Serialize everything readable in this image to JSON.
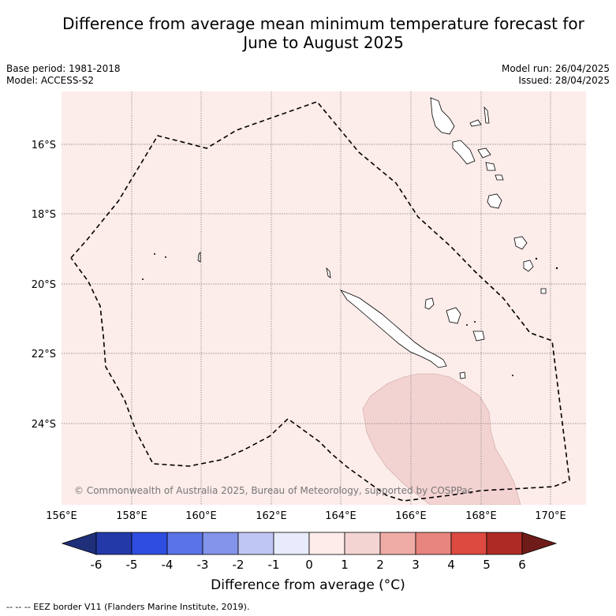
{
  "header": {
    "title_line1": "Difference from average mean minimum temperature forecast for",
    "title_line2": "June to August 2025",
    "base_period": "Base period: 1981-2018",
    "model": "Model: ACCESS-S2",
    "model_run": "Model run: 26/04/2025",
    "issued": "Issued: 28/04/2025"
  },
  "map": {
    "copyright": "© Commonwealth of Australia 2025, Bureau of Meteorology, supported by COSPPac",
    "lat_labels": [
      "16°S",
      "18°S",
      "20°S",
      "22°S",
      "24°S"
    ],
    "lon_labels": [
      "156°E",
      "158°E",
      "160°E",
      "162°E",
      "164°E",
      "166°E",
      "168°E",
      "170°E"
    ],
    "background_class": "0 to 1",
    "anomaly_patch_class": "1 to 2",
    "colors": {
      "class_0_1": "#fcecea",
      "class_1_2": "#f3d3d2",
      "grid": "#777777"
    }
  },
  "colorbar": {
    "title": "Difference from average (°C)",
    "ticks": [
      "-6",
      "-5",
      "-4",
      "-3",
      "-2",
      "-1",
      "0",
      "1",
      "2",
      "3",
      "4",
      "5",
      "6"
    ],
    "colors": [
      "#1f2f7a",
      "#2339a8",
      "#2f4de0",
      "#5a73e6",
      "#8394ea",
      "#bfc6f3",
      "#e8ebfb",
      "#fdecea",
      "#f4d4d2",
      "#efaca7",
      "#e7857e",
      "#dc4a40",
      "#ad2b24",
      "#6e1b19"
    ]
  },
  "legend": {
    "eez_note": "--  --  -- EEZ border V11 (Flanders Marine Institute, 2019)."
  }
}
